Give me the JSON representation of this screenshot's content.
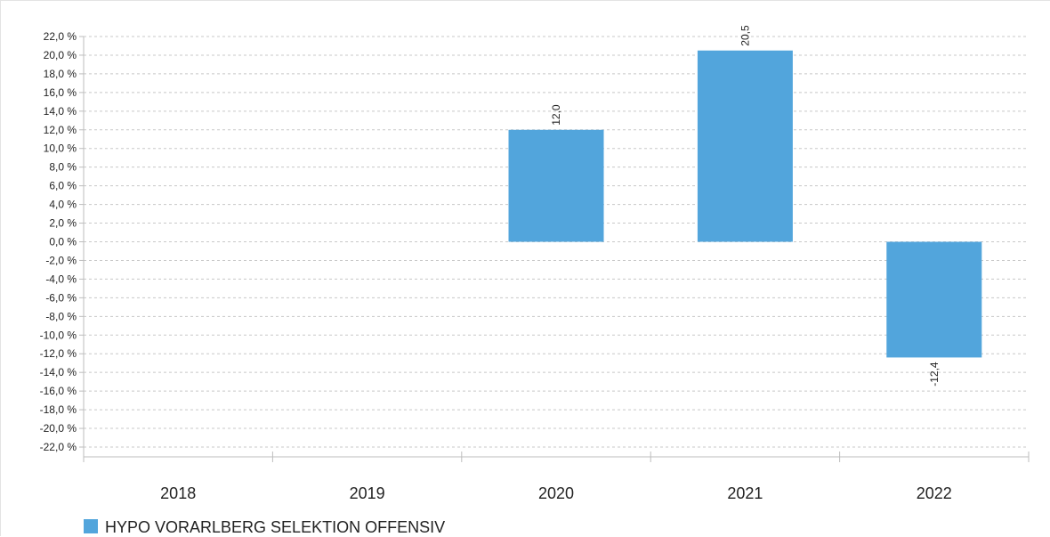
{
  "chart_data": {
    "type": "bar",
    "categories": [
      "2018",
      "2019",
      "2020",
      "2021",
      "2022"
    ],
    "series": [
      {
        "name": "HYPO VORARLBERG SELEKTION OFFENSIV",
        "values": [
          null,
          null,
          12.0,
          20.5,
          -12.4
        ],
        "data_labels": [
          "",
          "",
          "12,0",
          "20,5",
          "-12,4"
        ]
      }
    ],
    "ylim": [
      -22,
      22
    ],
    "y_step": 2,
    "y_tick_suffix": " %",
    "decimal_separator": ",",
    "grid": "horizontal-dotted",
    "legend_position": "bottom-left",
    "colors": {
      "bar": "#52a5dc",
      "grid": "#c8c8c8",
      "axis": "#bdbdbd",
      "text": "#222222"
    }
  }
}
